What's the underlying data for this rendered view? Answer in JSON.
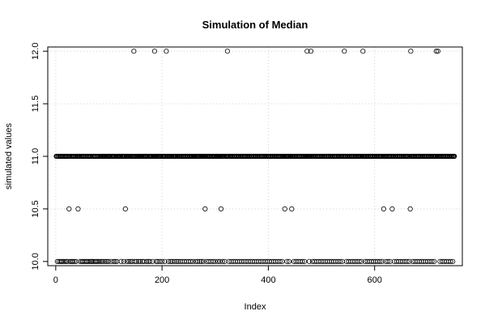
{
  "chart_data": {
    "type": "scatter",
    "title": "Simulation of Median",
    "xlabel": "Index",
    "ylabel": "simulated values",
    "xlim": [
      -15,
      765
    ],
    "ylim": [
      9.96,
      12.04
    ],
    "xticks": [
      0,
      200,
      400,
      600
    ],
    "yticks": [
      10.0,
      10.5,
      11.0,
      11.5,
      12.0
    ],
    "ytick_labels": [
      "10.0",
      "10.5",
      "11.0",
      "11.5",
      "12.0"
    ],
    "grid": true,
    "series": [
      {
        "n": 750,
        "value_levels": [
          10.0,
          10.5,
          11.0,
          12.0
        ],
        "points_at_12": [
          146,
          185,
          207,
          322,
          472,
          479,
          542,
          577,
          667,
          715,
          718
        ],
        "points_at_10_5": [
          24,
          41,
          130,
          280,
          310,
          430,
          443,
          616,
          632,
          666
        ],
        "points_at_10": [
          2,
          5,
          8,
          10,
          13,
          16,
          19,
          21,
          26,
          29,
          31,
          34,
          37,
          45,
          48,
          50,
          53,
          56,
          58,
          61,
          64,
          66,
          68,
          71,
          74,
          76,
          79,
          82,
          85,
          88,
          92,
          95,
          98,
          103,
          108,
          111,
          114,
          122,
          127,
          133,
          137,
          140,
          143,
          148,
          151,
          155,
          158,
          162,
          165,
          170,
          173,
          176,
          181,
          188,
          191,
          195,
          199,
          204,
          211,
          215,
          218,
          222,
          226,
          229,
          233,
          237,
          241,
          245,
          249,
          253,
          257,
          262,
          266,
          270,
          273,
          277,
          283,
          287,
          291,
          295,
          299,
          304,
          308,
          313,
          317,
          325,
          329,
          333,
          337,
          341,
          345,
          349,
          353,
          357,
          361,
          365,
          369,
          373,
          377,
          381,
          385,
          389,
          393,
          397,
          401,
          405,
          409,
          413,
          417,
          421,
          425,
          434,
          438,
          447,
          451,
          455,
          459,
          463,
          467,
          476,
          482,
          486,
          490,
          494,
          498,
          502,
          506,
          510,
          514,
          518,
          522,
          526,
          530,
          534,
          538,
          546,
          550,
          554,
          558,
          562,
          566,
          570,
          574,
          581,
          585,
          589,
          593,
          597,
          601,
          605,
          609,
          613,
          620,
          624,
          628,
          636,
          640,
          644,
          648,
          652,
          656,
          660,
          664,
          671,
          675,
          679,
          683,
          687,
          691,
          695,
          699,
          703,
          707,
          711,
          722,
          726,
          730,
          734,
          738,
          742,
          746
        ],
        "default_value": 11.0
      }
    ]
  }
}
